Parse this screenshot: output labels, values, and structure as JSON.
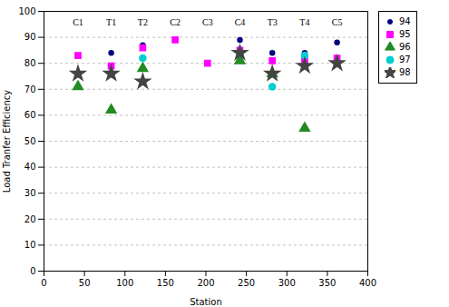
{
  "chart_data": {
    "type": "scatter",
    "xlabel": "Station",
    "ylabel": "Load Tranfer Efficiency",
    "xlim": [
      0,
      400
    ],
    "ylim": [
      0,
      100
    ],
    "xticks": [
      0,
      50,
      100,
      150,
      200,
      250,
      300,
      350,
      400
    ],
    "yticks": [
      0,
      10,
      20,
      30,
      40,
      50,
      60,
      70,
      80,
      90,
      100
    ],
    "grid": "y",
    "legend": "right",
    "annotations": [
      {
        "text": "C1",
        "x": 42,
        "y": 97
      },
      {
        "text": "T1",
        "x": 83,
        "y": 97
      },
      {
        "text": "T2",
        "x": 122,
        "y": 97
      },
      {
        "text": "C2",
        "x": 162,
        "y": 97
      },
      {
        "text": "C3",
        "x": 202,
        "y": 97
      },
      {
        "text": "C4",
        "x": 242,
        "y": 97
      },
      {
        "text": "T3",
        "x": 282,
        "y": 97
      },
      {
        "text": "T4",
        "x": 322,
        "y": 97
      },
      {
        "text": "C5",
        "x": 362,
        "y": 97
      }
    ],
    "series": [
      {
        "name": "94",
        "color": "#000080",
        "marker": "point",
        "x": [
          42,
          83,
          122,
          242,
          282,
          322,
          362
        ],
        "values": [
          76,
          84,
          87,
          89,
          84,
          84,
          88
        ]
      },
      {
        "name": "95",
        "color": "#FF00FF",
        "marker": "square",
        "x": [
          42,
          83,
          122,
          162,
          202,
          242,
          282,
          322,
          362
        ],
        "values": [
          83,
          79,
          86,
          89,
          80,
          85,
          81,
          81,
          82
        ]
      },
      {
        "name": "96",
        "color": "#228B22",
        "marker": "triangle",
        "x": [
          42,
          83,
          122,
          242,
          282,
          322
        ],
        "values": [
          71,
          62,
          78,
          81,
          76,
          55
        ]
      },
      {
        "name": "97",
        "color": "#00CED1",
        "marker": "circle",
        "x": [
          42,
          83,
          122,
          242,
          282,
          322,
          362
        ],
        "values": [
          76,
          76,
          82,
          84,
          71,
          83,
          80
        ]
      },
      {
        "name": "98",
        "color": "#444444",
        "marker": "star",
        "x": [
          42,
          83,
          122,
          242,
          282,
          322,
          362
        ],
        "values": [
          76,
          76,
          73,
          84,
          76,
          79,
          80
        ]
      }
    ]
  }
}
